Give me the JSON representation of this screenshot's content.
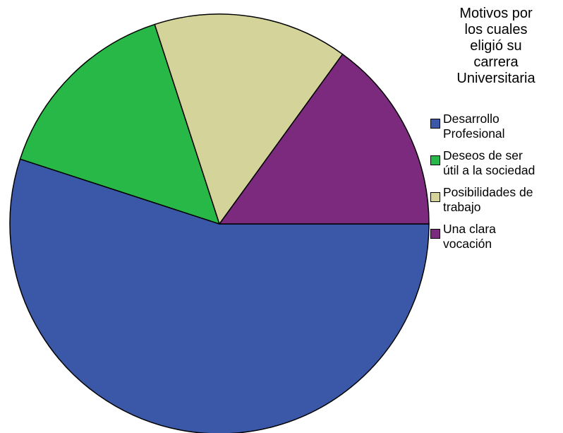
{
  "chart_data": {
    "type": "pie",
    "legend_title": [
      "Motivos por",
      "los cuales",
      "eligió su",
      "carrera",
      "Universitaria"
    ],
    "legend_placement": "right",
    "start_angle_deg": 0,
    "direction": "clockwise",
    "slices": [
      {
        "label": [
          "Desarrollo",
          "Profesional"
        ],
        "value": 55,
        "color": "#3b58a8"
      },
      {
        "label": [
          "Deseos de ser",
          "útil a la sociedad"
        ],
        "value": 15,
        "color": "#28b848"
      },
      {
        "label": [
          "Posibilidades de",
          "trabajo"
        ],
        "value": 15,
        "color": "#d4d49a"
      },
      {
        "label": [
          "Una clara",
          "vocación"
        ],
        "value": 15,
        "color": "#7b2a7e"
      }
    ]
  }
}
